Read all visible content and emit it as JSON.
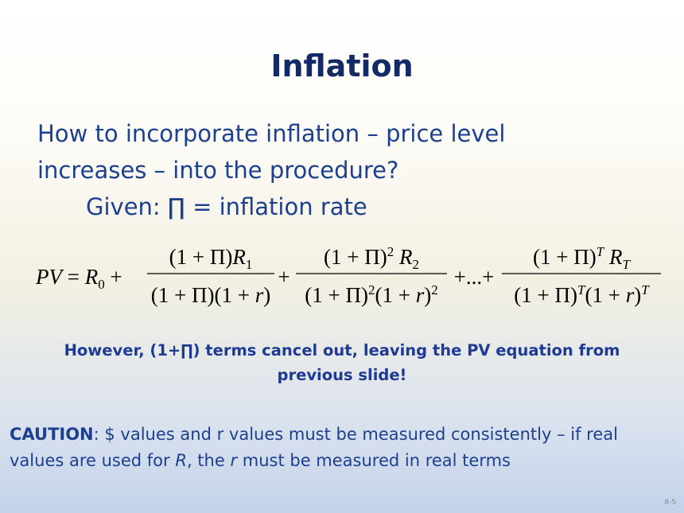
{
  "title": "Inflation",
  "body": [
    "How to incorporate inflation – price level",
    "increases – into the procedure?",
    "Given: ∏ = inflation rate"
  ],
  "equation": {
    "lead": [
      {
        "text": "PV",
        "style": "italic"
      },
      {
        "text": " = ",
        "style": "normal"
      },
      {
        "text": "R",
        "style": "italic"
      },
      {
        "text": "0",
        "style": "sub"
      },
      {
        "text": " +",
        "style": "normal"
      }
    ],
    "fractions": [
      {
        "numerator": [
          {
            "text": "(1 + Π)",
            "style": "normal"
          },
          {
            "text": "R",
            "style": "italic"
          },
          {
            "text": "1",
            "style": "sub"
          }
        ],
        "denominator": [
          {
            "text": "(1 + Π)(1 + ",
            "style": "normal"
          },
          {
            "text": "r",
            "style": "italic"
          },
          {
            "text": ")",
            "style": "normal"
          }
        ]
      },
      {
        "numerator": [
          {
            "text": "(1 + Π)",
            "style": "normal"
          },
          {
            "text": "2",
            "style": "sup"
          },
          {
            "text": " R",
            "style": "italic"
          },
          {
            "text": "2",
            "style": "sub"
          }
        ],
        "denominator": [
          {
            "text": "(1 + Π)",
            "style": "normal"
          },
          {
            "text": "2",
            "style": "sup"
          },
          {
            "text": "(1 + ",
            "style": "normal"
          },
          {
            "text": "r",
            "style": "italic"
          },
          {
            "text": ")",
            "style": "normal"
          },
          {
            "text": "2",
            "style": "sup"
          }
        ]
      },
      {
        "numerator": [
          {
            "text": "(1 + Π)",
            "style": "normal"
          },
          {
            "text": "T",
            "style": "sup-italic"
          },
          {
            "text": " R",
            "style": "italic"
          },
          {
            "text": "T",
            "style": "sub-italic"
          }
        ],
        "denominator": [
          {
            "text": "(1 + Π)",
            "style": "normal"
          },
          {
            "text": "T",
            "style": "sup-italic"
          },
          {
            "text": "(1 + ",
            "style": "normal"
          },
          {
            "text": "r",
            "style": "italic"
          },
          {
            "text": ")",
            "style": "normal"
          },
          {
            "text": "T",
            "style": "sup-italic"
          }
        ]
      }
    ],
    "operators": [
      "+",
      "+...+"
    ]
  },
  "note": [
    "However, (1+∏) terms cancel out, leaving the PV equation from",
    "previous slide!"
  ],
  "caution": [
    [
      {
        "text": "CAUTION",
        "style": "bold"
      },
      {
        "text": ": $ values and r values must be measured consistently – if real",
        "style": "normal"
      }
    ],
    [
      {
        "text": "values are used for ",
        "style": "normal"
      },
      {
        "text": "R",
        "style": "italic"
      },
      {
        "text": ", the ",
        "style": "normal"
      },
      {
        "text": "r",
        "style": "italic"
      },
      {
        "text": " must be measured in real terms",
        "style": "normal"
      }
    ]
  ],
  "slide_number": "8-5"
}
